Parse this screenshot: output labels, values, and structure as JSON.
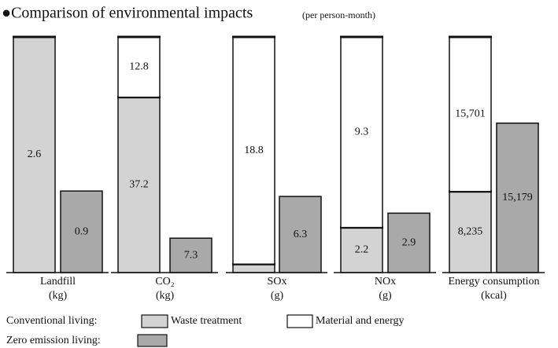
{
  "title": "●Comparison of environmental impacts",
  "subtitle": "(per person-month)",
  "legend": [
    {
      "label": "Conventional living:",
      "items": [
        {
          "name": "Waste treatment",
          "color": "#d3d3d3"
        },
        {
          "name": "Material and energy",
          "color": "#ffffff"
        }
      ]
    },
    {
      "label": "Zero emission living:",
      "items": [
        {
          "color": "#a9a9a9"
        }
      ]
    }
  ],
  "chart_data": [
    {
      "type": "stacked-bar",
      "label": "Landfill",
      "unit": "(kg)",
      "ylim": [
        0,
        2.6
      ],
      "conventional": [
        2.6,
        null
      ],
      "zero_emission": 0.9
    },
    {
      "type": "stacked-bar",
      "label": "CO₂",
      "unit": "(kg)",
      "ylim": [
        0,
        50
      ],
      "conventional": [
        37.2,
        12.8
      ],
      "zero_emission": 7.3
    },
    {
      "type": "stacked-bar",
      "label": "SOx",
      "unit": "(g)",
      "ylim": [
        0,
        19.5
      ],
      "conventional": [
        0.7,
        18.8
      ],
      "zero_emission": 6.3
    },
    {
      "type": "stacked-bar",
      "label": "NOx",
      "unit": "(g)",
      "ylim": [
        0,
        11.5
      ],
      "conventional": [
        2.2,
        9.3
      ],
      "zero_emission": 2.9
    },
    {
      "type": "stacked-bar",
      "label": "Energy consumption",
      "unit": "(kcal)",
      "ylim": [
        0,
        23936
      ],
      "conventional": [
        8235,
        15701
      ],
      "zero_emission": 15179,
      "value_labels": {
        "conventional": [
          "8,235",
          "15,701"
        ],
        "zero_emission": "15,179"
      }
    }
  ]
}
